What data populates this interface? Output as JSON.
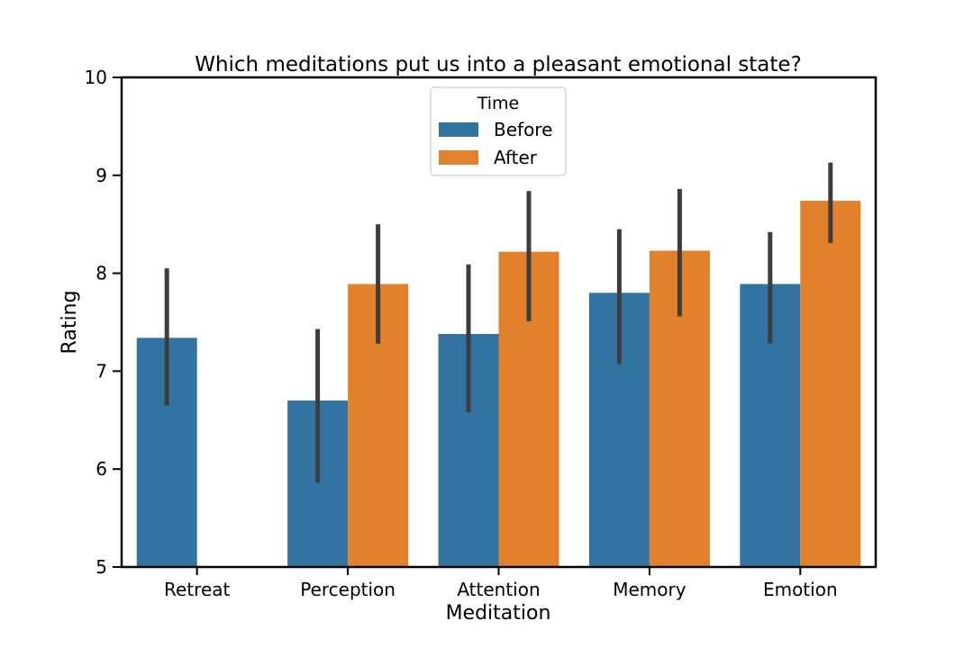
{
  "chart_data": {
    "type": "bar",
    "title": "Which meditations put us into a pleasant emotional state?",
    "xlabel": "Meditation",
    "ylabel": "Rating",
    "ylim": [
      5,
      10
    ],
    "yticks": [
      5,
      6,
      7,
      8,
      9,
      10
    ],
    "categories": [
      "Retreat",
      "Perception",
      "Attention",
      "Memory",
      "Emotion"
    ],
    "legend": {
      "title": "Time",
      "placement": "top-center"
    },
    "grid": false,
    "series": [
      {
        "name": "Before",
        "color": "#3274a1",
        "values": [
          7.34,
          6.7,
          7.38,
          7.8,
          7.89
        ],
        "ci_low": [
          6.65,
          5.86,
          6.58,
          7.07,
          7.28
        ],
        "ci_high": [
          8.05,
          7.43,
          8.09,
          8.45,
          8.42
        ]
      },
      {
        "name": "After",
        "color": "#e1812c",
        "values": [
          null,
          7.89,
          8.22,
          8.23,
          8.74
        ],
        "ci_low": [
          null,
          7.28,
          7.51,
          7.56,
          8.31
        ],
        "ci_high": [
          null,
          8.5,
          8.84,
          8.86,
          9.13
        ]
      }
    ]
  }
}
